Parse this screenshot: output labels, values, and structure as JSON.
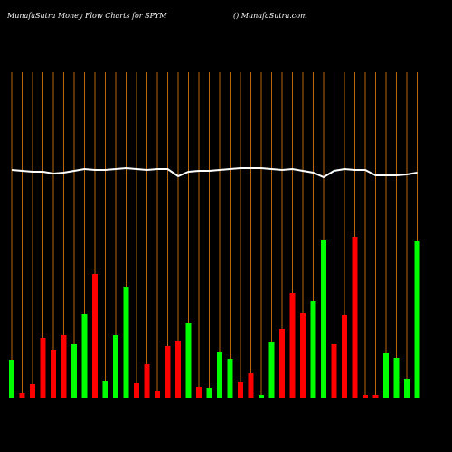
{
  "chart_data": {
    "type": "bar",
    "title": "MunafaSutra  Money Flow  Charts for SPYM",
    "subtitle": "() MunafaSutra.com",
    "categories": [
      null,
      null,
      null,
      null,
      null,
      null,
      null,
      null,
      null,
      null,
      null,
      null,
      null,
      null,
      null,
      null,
      null,
      null,
      null,
      null,
      null,
      null,
      null,
      null,
      null,
      null,
      null,
      null,
      null,
      null,
      null,
      null,
      null,
      null,
      null,
      null,
      null,
      null,
      null,
      null
    ],
    "values": [
      42,
      5,
      15,
      66,
      53,
      69,
      59,
      93,
      137,
      18,
      69,
      123,
      16,
      37,
      8,
      57,
      63,
      83,
      12,
      11,
      51,
      43,
      17,
      27,
      3,
      62,
      76,
      116,
      94,
      107,
      175,
      60,
      92,
      178,
      3,
      3,
      50,
      44,
      21,
      173
    ],
    "colors": [
      "#00ff00",
      "#ff0000",
      "#ff0000",
      "#ff0000",
      "#ff0000",
      "#ff0000",
      "#00ff00",
      "#00ff00",
      "#ff0000",
      "#00ff00",
      "#00ff00",
      "#00ff00",
      "#ff0000",
      "#ff0000",
      "#ff0000",
      "#ff0000",
      "#ff0000",
      "#00ff00",
      "#ff0000",
      "#00ff00",
      "#00ff00",
      "#00ff00",
      "#ff0000",
      "#ff0000",
      "#00ff00",
      "#00ff00",
      "#ff0000",
      "#ff0000",
      "#ff0000",
      "#00ff00",
      "#00ff00",
      "#ff0000",
      "#ff0000",
      "#ff0000",
      "#ff0000",
      "#ff0000",
      "#00ff00",
      "#00ff00",
      "#00ff00",
      "#00ff00"
    ],
    "line": {
      "color": "#ffffff",
      "values": [
        252,
        251,
        250,
        250,
        248,
        249,
        251,
        253,
        252,
        252,
        253,
        254,
        253,
        252,
        253,
        253,
        245,
        250,
        251,
        251,
        252,
        253,
        254,
        254,
        254,
        253,
        252,
        253,
        251,
        249,
        244,
        251,
        253,
        252,
        252,
        246,
        246,
        246,
        247,
        249
      ]
    },
    "ylim": [
      0,
      360
    ],
    "grid_color": "#b8650e"
  }
}
